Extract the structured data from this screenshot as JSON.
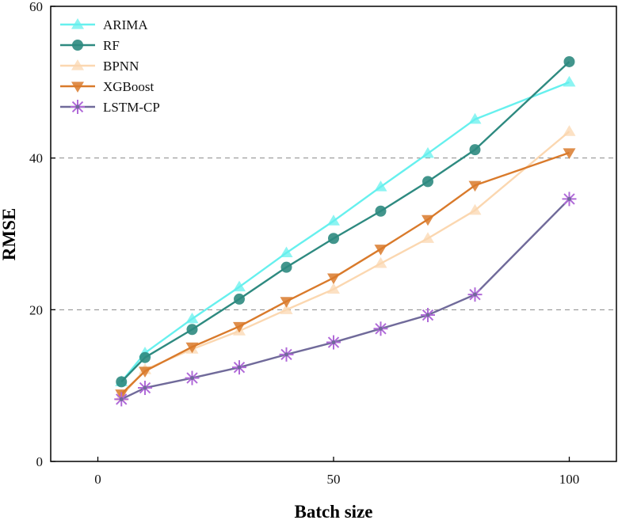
{
  "chart_data": {
    "type": "line",
    "title": "",
    "xlabel": "Batch size",
    "ylabel": "RMSE",
    "xlim": [
      -10,
      110
    ],
    "ylim": [
      0,
      60
    ],
    "xticks": [
      0,
      50,
      100
    ],
    "yticks": [
      0,
      20,
      40,
      60
    ],
    "gridlines_y": [
      20,
      40
    ],
    "legend_position": "top-left",
    "x": [
      5,
      10,
      20,
      30,
      40,
      50,
      60,
      70,
      80,
      100
    ],
    "series": [
      {
        "name": "ARIMA",
        "color": "#66f0ee",
        "marker": "triangle-up",
        "values": [
          10.5,
          14.3,
          18.8,
          23.0,
          27.5,
          31.7,
          36.2,
          40.6,
          45.1,
          50.0
        ]
      },
      {
        "name": "RF",
        "color": "#2e8a80",
        "marker": "circle",
        "values": [
          10.5,
          13.7,
          17.4,
          21.4,
          25.6,
          29.4,
          33.0,
          36.9,
          41.1,
          52.7
        ]
      },
      {
        "name": "BPNN",
        "color": "#fbd7b0",
        "marker": "triangle-up",
        "values": [
          8.6,
          12.1,
          14.8,
          17.2,
          20.0,
          22.7,
          26.1,
          29.4,
          33.1,
          43.5
        ]
      },
      {
        "name": "XGBoost",
        "color": "#d97a2b",
        "marker": "triangle-down",
        "values": [
          8.9,
          11.9,
          15.1,
          17.8,
          21.1,
          24.2,
          28.0,
          31.9,
          36.4,
          40.7
        ]
      },
      {
        "name": "LSTM-CP",
        "color": "#706a9a",
        "marker": "asterisk",
        "values": [
          8.2,
          9.7,
          11.0,
          12.4,
          14.1,
          15.7,
          17.5,
          19.3,
          22.0,
          34.6
        ]
      }
    ]
  }
}
